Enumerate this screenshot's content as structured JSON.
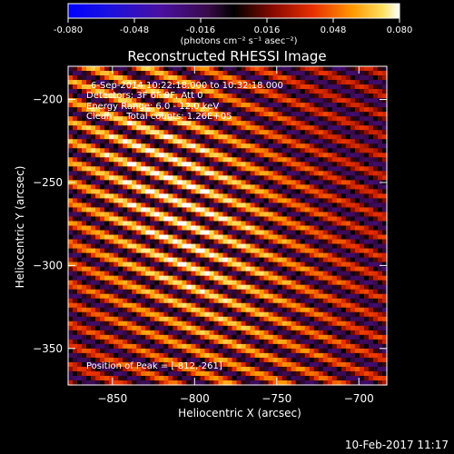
{
  "colorbar": {
    "ticks": [
      "-0.080",
      "-0.048",
      "-0.016",
      "0.016",
      "0.048",
      "0.080"
    ],
    "unit_label": "(photons cm⁻² s⁻¹ asec⁻²)",
    "range": [
      -0.08,
      0.08
    ]
  },
  "chart_data": {
    "type": "heatmap",
    "title": "Reconstructed RHESSI Image",
    "xlabel": "Heliocentric X (arcsec)",
    "ylabel": "Heliocentric Y (arcsec)",
    "xlim": [
      -877,
      -683
    ],
    "ylim": [
      -372,
      -180
    ],
    "xticks": [
      -850,
      -800,
      -750,
      -700
    ],
    "yticks": [
      -200,
      -250,
      -300,
      -350
    ],
    "xtick_labels": [
      "−850",
      "−800",
      "−750",
      "−700"
    ],
    "ytick_labels": [
      "−200",
      "−250",
      "−300",
      "−350"
    ],
    "peak": [
      -812,
      -261
    ],
    "value_range": [
      -0.08,
      0.08
    ],
    "annotations": [
      "6-Sep-2014 10:22:18.000 to 10:32:18.000",
      "Detectors: 3F 6F 9F, Att 0",
      "Energy Range: 6.0 - 12.0 keV",
      "Clean     Total counts: 1.26E+05"
    ],
    "peak_label": "Position of Peak = [-812,-261]",
    "colormap": "hot-with-blue-negative"
  },
  "footer": {
    "timestamp": "10-Feb-2017 11:17"
  }
}
